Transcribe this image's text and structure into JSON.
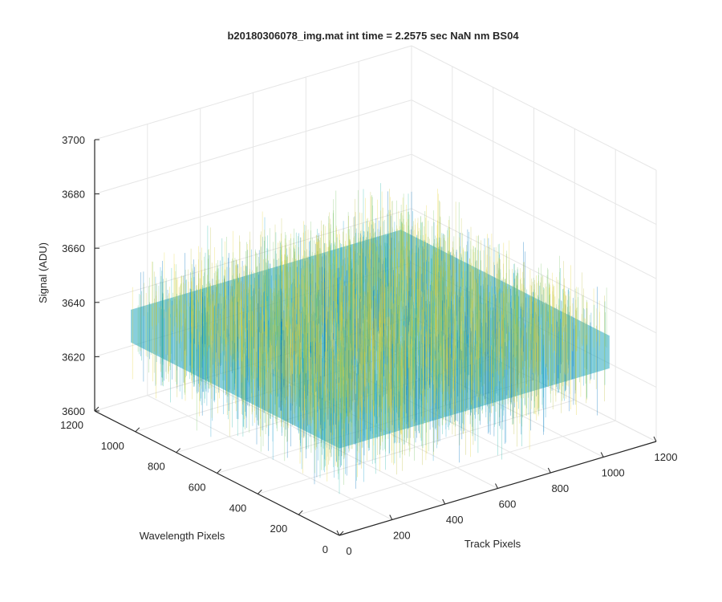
{
  "chart_data": {
    "type": "surface",
    "title": "b20180306078_img.mat int time = 2.2575 sec  NaN nm BS04",
    "xlabel": "Track Pixels",
    "ylabel": "Wavelength Pixels",
    "zlabel": "Signal (ADU)",
    "xlim": [
      0,
      1200
    ],
    "ylim": [
      0,
      1200
    ],
    "zlim": [
      3600,
      3700
    ],
    "x_ticks": [
      0,
      200,
      400,
      600,
      800,
      1000,
      1200
    ],
    "y_ticks": [
      0,
      200,
      400,
      600,
      800,
      1000,
      1200
    ],
    "z_ticks": [
      3600,
      3620,
      3640,
      3660,
      3680,
      3700
    ],
    "x_extent": [
      1,
      1024
    ],
    "y_extent": [
      1,
      1024
    ],
    "z_mean": 3638,
    "z_noise_range": [
      3605,
      3690
    ],
    "grid": true,
    "colormap": "parula",
    "colors": [
      "#0072bd",
      "#1fa1d0",
      "#2fbbad",
      "#7cc76a",
      "#c2c246",
      "#e6d43a"
    ]
  }
}
